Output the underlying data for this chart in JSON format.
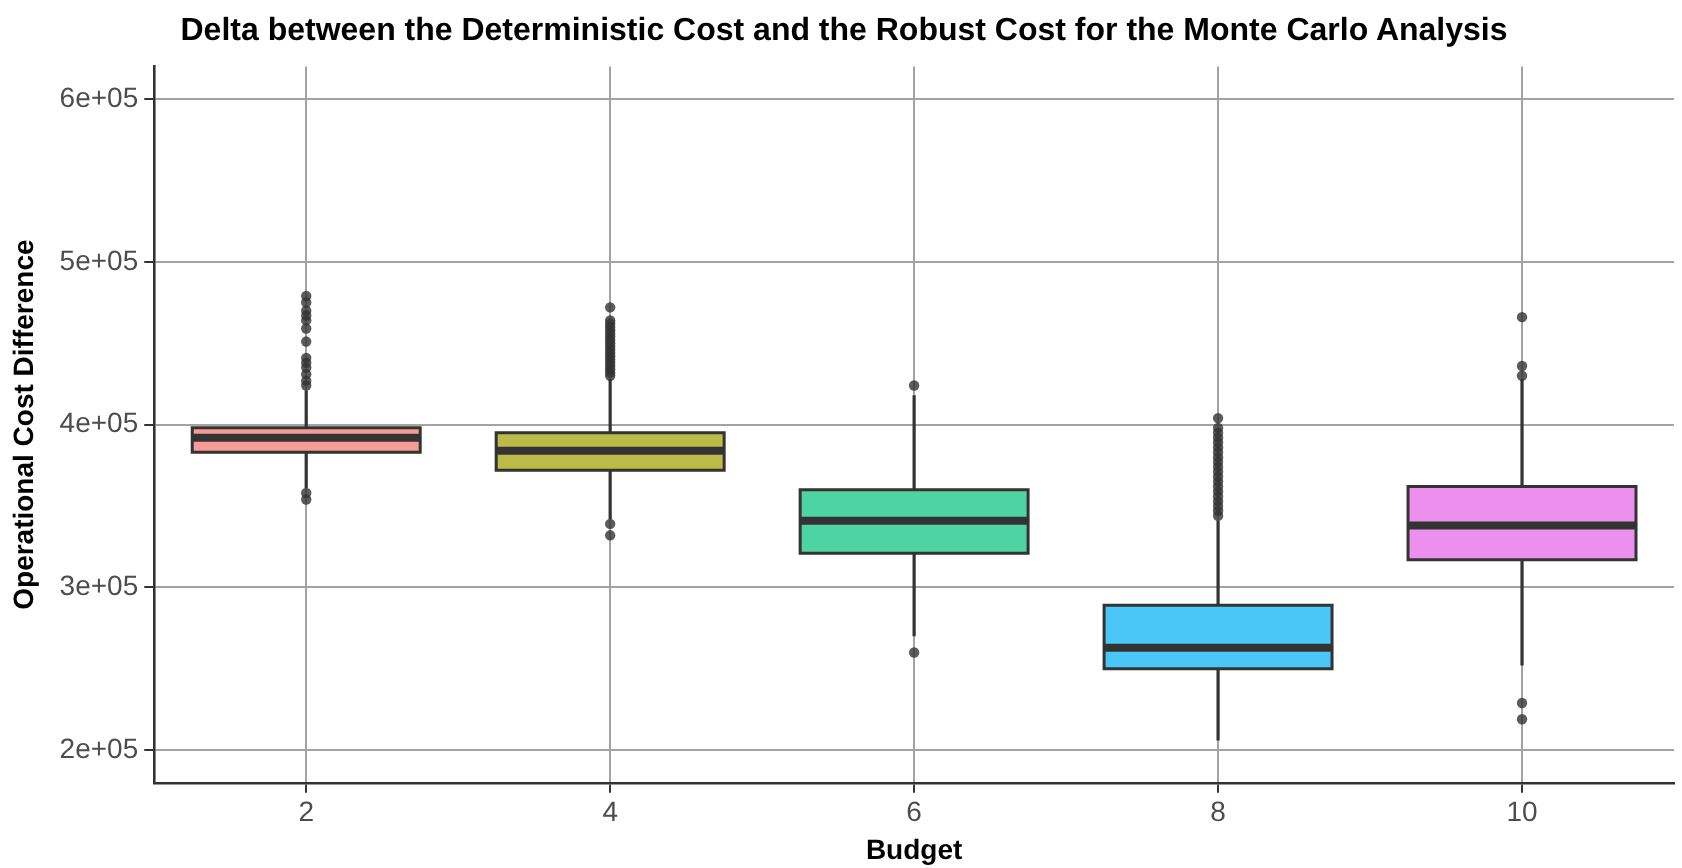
{
  "chart_data": {
    "type": "box",
    "title": "Delta between the Deterministic Cost and the Robust Cost for the Monte Carlo Analysis",
    "xlabel": "Budget",
    "ylabel": "Operational Cost Difference",
    "categories": [
      "2",
      "4",
      "6",
      "8",
      "10"
    ],
    "colors": [
      "#f49c95",
      "#bdbb48",
      "#4ed4a2",
      "#4ac7f7",
      "#ed90ed"
    ],
    "boxes": [
      {
        "low": 361000,
        "q1": 383000,
        "median": 392000,
        "q3": 398000,
        "high": 421000,
        "outliers": [
          424000,
          427000,
          431000,
          435000,
          438000,
          441000,
          451000,
          459000,
          464000,
          467000,
          470000,
          475000,
          479000,
          358000,
          354000
        ]
      },
      {
        "low": 342000,
        "q1": 372000,
        "median": 384000,
        "q3": 395000,
        "high": 428000,
        "outliers": [
          430000,
          432000,
          434000,
          436000,
          438000,
          440000,
          442000,
          444000,
          446000,
          448000,
          450000,
          452000,
          454000,
          456000,
          458000,
          460000,
          462000,
          464000,
          472000,
          339000,
          332000
        ]
      },
      {
        "low": 270000,
        "q1": 321000,
        "median": 341000,
        "q3": 360000,
        "high": 418000,
        "outliers": [
          424000,
          260000
        ]
      },
      {
        "low": 206000,
        "q1": 250000,
        "median": 263000,
        "q3": 289000,
        "high": 341000,
        "outliers": [
          344000,
          347000,
          350000,
          353000,
          356000,
          359000,
          362000,
          365000,
          368000,
          371000,
          374000,
          377000,
          380000,
          383000,
          386000,
          389000,
          392000,
          395000,
          398000,
          404000
        ]
      },
      {
        "low": 252000,
        "q1": 317000,
        "median": 338000,
        "q3": 362000,
        "high": 428000,
        "outliers": [
          430000,
          436000,
          466000,
          229000,
          219000
        ]
      }
    ],
    "ylim": [
      180000,
      620000
    ],
    "yticks": [
      {
        "value": 200000,
        "label": "2e+05"
      },
      {
        "value": 300000,
        "label": "3e+05"
      },
      {
        "value": 400000,
        "label": "4e+05"
      },
      {
        "value": 500000,
        "label": "5e+05"
      },
      {
        "value": 600000,
        "label": "6e+05"
      }
    ],
    "grid": true
  }
}
